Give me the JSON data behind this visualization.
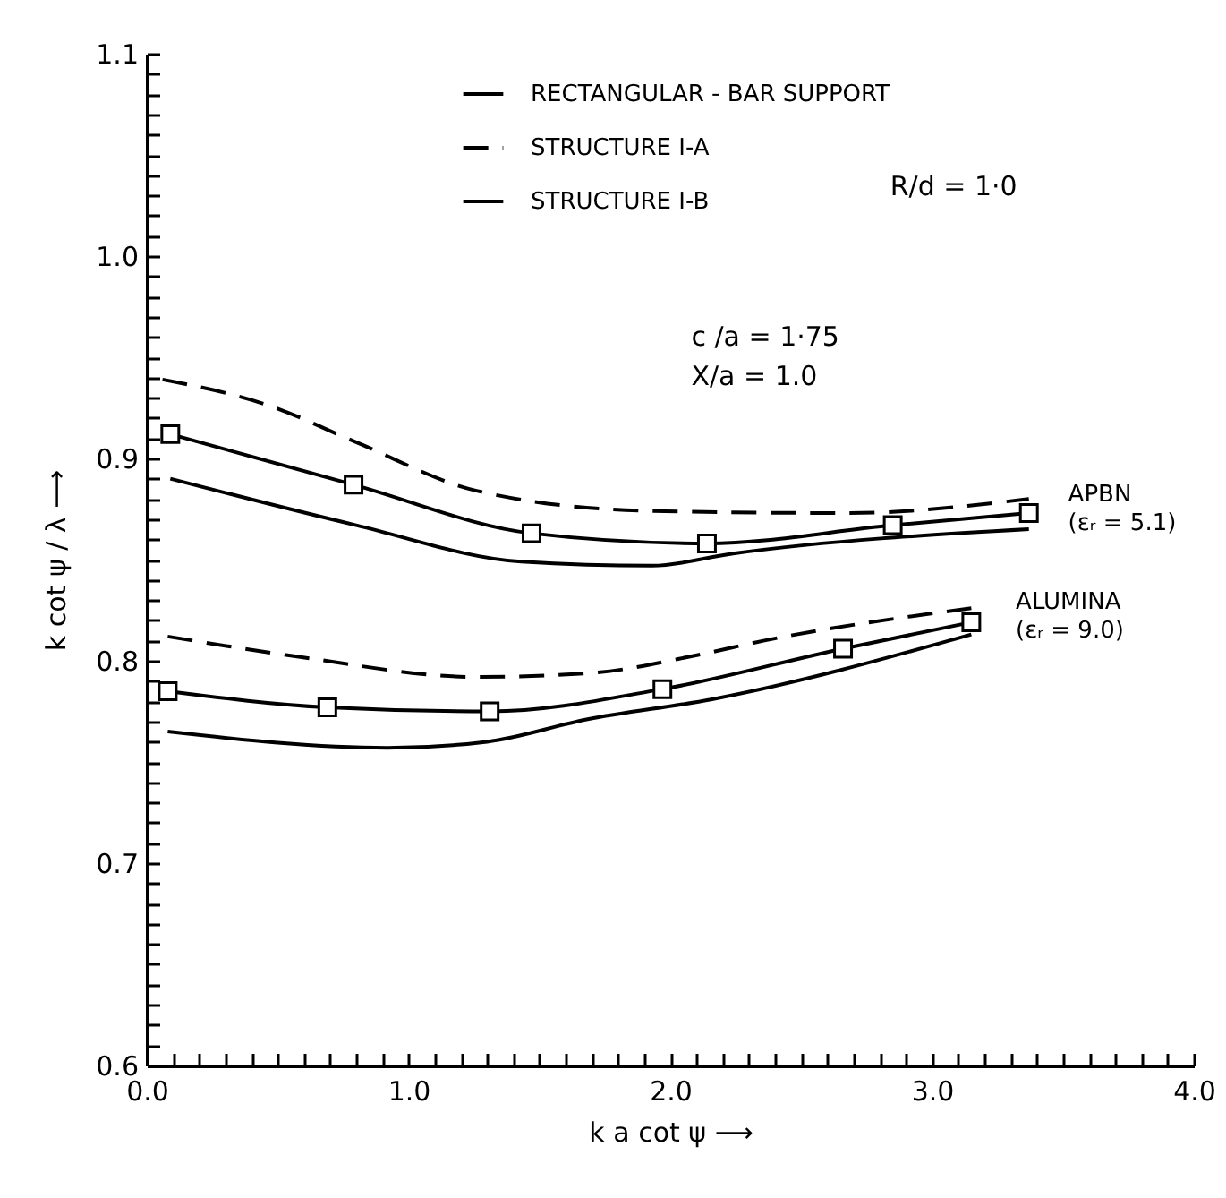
{
  "chart_data": {
    "type": "line",
    "xlabel": "k a cot ψ ⟶",
    "ylabel": "k cot ψ / λ ⟶",
    "xlim": [
      0,
      4
    ],
    "ylim": [
      0.6,
      1.1
    ],
    "xticks": [
      {
        "value": 0,
        "label": "0.0"
      },
      {
        "value": 0.1,
        "label": null
      },
      {
        "value": 0.2,
        "label": null
      },
      {
        "value": 0.3,
        "label": null
      },
      {
        "value": 0.4,
        "label": null
      },
      {
        "value": 0.5,
        "label": null
      },
      {
        "value": 0.6,
        "label": null
      },
      {
        "value": 0.7,
        "label": null
      },
      {
        "value": 0.8,
        "label": null
      },
      {
        "value": 0.9,
        "label": null
      },
      {
        "value": 1,
        "label": "1.0"
      },
      {
        "value": 1.1,
        "label": null
      },
      {
        "value": 1.2,
        "label": null
      },
      {
        "value": 1.3,
        "label": null
      },
      {
        "value": 1.4,
        "label": null
      },
      {
        "value": 1.5,
        "label": null
      },
      {
        "value": 1.6,
        "label": null
      },
      {
        "value": 1.7,
        "label": null
      },
      {
        "value": 1.8,
        "label": null
      },
      {
        "value": 1.9,
        "label": null
      },
      {
        "value": 2,
        "label": "2.0"
      },
      {
        "value": 2.1,
        "label": null
      },
      {
        "value": 2.2,
        "label": null
      },
      {
        "value": 2.3,
        "label": null
      },
      {
        "value": 2.4,
        "label": null
      },
      {
        "value": 2.5,
        "label": null
      },
      {
        "value": 2.6,
        "label": null
      },
      {
        "value": 2.7,
        "label": null
      },
      {
        "value": 2.8,
        "label": null
      },
      {
        "value": 2.9,
        "label": null
      },
      {
        "value": 3,
        "label": "3.0"
      },
      {
        "value": 3.1,
        "label": null
      },
      {
        "value": 3.2,
        "label": null
      },
      {
        "value": 3.3,
        "label": null
      },
      {
        "value": 3.4,
        "label": null
      },
      {
        "value": 3.5,
        "label": null
      },
      {
        "value": 3.6,
        "label": null
      },
      {
        "value": 3.7,
        "label": null
      },
      {
        "value": 3.8,
        "label": null
      },
      {
        "value": 3.9,
        "label": null
      },
      {
        "value": 4,
        "label": "4.0"
      }
    ],
    "yticks": [
      0.6,
      {
        "value": 0.61,
        "label": null
      },
      {
        "value": 0.62,
        "label": null
      },
      {
        "value": 0.63,
        "label": null
      },
      {
        "value": 0.64,
        "label": null
      },
      {
        "value": 0.65,
        "label": null
      },
      {
        "value": 0.66,
        "label": null
      },
      {
        "value": 0.67,
        "label": null
      },
      {
        "value": 0.68,
        "label": null
      },
      {
        "value": 0.69,
        "label": null
      },
      0.7,
      {
        "value": 0.71,
        "label": null
      },
      {
        "value": 0.72,
        "label": null
      },
      {
        "value": 0.73,
        "label": null
      },
      {
        "value": 0.74,
        "label": null
      },
      {
        "value": 0.75,
        "label": null
      },
      {
        "value": 0.76,
        "label": null
      },
      {
        "value": 0.77,
        "label": null
      },
      {
        "value": 0.78,
        "label": null
      },
      {
        "value": 0.79,
        "label": null
      },
      0.8,
      {
        "value": 0.81,
        "label": null
      },
      {
        "value": 0.82,
        "label": null
      },
      {
        "value": 0.83,
        "label": null
      },
      {
        "value": 0.84,
        "label": null
      },
      {
        "value": 0.85,
        "label": null
      },
      {
        "value": 0.86,
        "label": null
      },
      {
        "value": 0.87,
        "label": null
      },
      {
        "value": 0.88,
        "label": null
      },
      {
        "value": 0.89,
        "label": null
      },
      0.9,
      {
        "value": 0.91,
        "label": null
      },
      {
        "value": 0.92,
        "label": null
      },
      {
        "value": 0.93,
        "label": null
      },
      {
        "value": 0.94,
        "label": null
      },
      {
        "value": 0.95,
        "label": null
      },
      {
        "value": 0.96,
        "label": null
      },
      {
        "value": 0.97,
        "label": null
      },
      {
        "value": 0.98,
        "label": null
      },
      {
        "value": 0.99,
        "label": null
      },
      {
        "value": 1,
        "label": "1.0"
      },
      {
        "value": 1.01,
        "label": null
      },
      {
        "value": 1.02,
        "label": null
      },
      {
        "value": 1.03,
        "label": null
      },
      {
        "value": 1.04,
        "label": null
      },
      {
        "value": 1.05,
        "label": null
      },
      {
        "value": 1.06,
        "label": null
      },
      {
        "value": 1.07,
        "label": null
      },
      {
        "value": 1.08,
        "label": null
      },
      {
        "value": 1.09,
        "label": null
      },
      1.1
    ],
    "legend": "top right",
    "grid": false,
    "series": [
      {
        "name": "RECTANGULAR - BAR SUPPORT",
        "color": "#000000",
        "line_style": "solid",
        "marker": "square",
        "x": [
          0.09,
          0.79,
          1.47,
          2.14,
          2.85,
          3.37
        ],
        "values": [
          0.912,
          0.887,
          0.863,
          0.858,
          0.867,
          0.873
        ]
      },
      {
        "name": "STRUCTURE I-A",
        "color": "#000000",
        "line_style": "dashed",
        "marker": "none",
        "x": [
          0.06,
          0.47,
          0.8,
          1.26,
          1.93,
          2.68,
          3.37
        ],
        "values": [
          0.939,
          0.926,
          0.908,
          0.884,
          0.874,
          0.873,
          0.88
        ]
      },
      {
        "name": "STRUCTURE I-B",
        "color": "#000000",
        "line_style": "solid",
        "marker": "none",
        "x": [
          0.09,
          0.8,
          1.43,
          1.93,
          2.24,
          3.37
        ],
        "values": [
          0.89,
          0.867,
          0.849,
          0.847,
          0.853,
          0.865
        ]
      },
      {
        "color": "#000000",
        "line_style": "solid",
        "marker": "square",
        "x": [
          0.08,
          0.69,
          1.31,
          1.97,
          2.66,
          3.15
        ],
        "values": [
          0.785,
          0.777,
          0.775,
          0.786,
          0.806,
          0.819
        ]
      },
      {
        "color": "#000000",
        "line_style": "dashed",
        "marker": "none",
        "x": [
          0.08,
          0.58,
          1.26,
          1.7,
          2.11,
          2.36,
          3.15
        ],
        "values": [
          0.812,
          0.802,
          0.792,
          0.794,
          0.803,
          0.81,
          0.826
        ]
      },
      {
        "color": "#000000",
        "line_style": "solid",
        "marker": "none",
        "x": [
          0.08,
          0.92,
          1.3,
          1.68,
          2.16,
          3.15
        ],
        "values": [
          0.765,
          0.757,
          0.76,
          0.771,
          0.781,
          0.813
        ]
      }
    ],
    "annotations": [
      "R/d = 1·0",
      "c /a = 1·75",
      "X/a = 1.0",
      "APBN",
      "(εᵣ = 5.1)",
      "ALUMINA",
      "(εᵣ = 9.0)"
    ]
  }
}
